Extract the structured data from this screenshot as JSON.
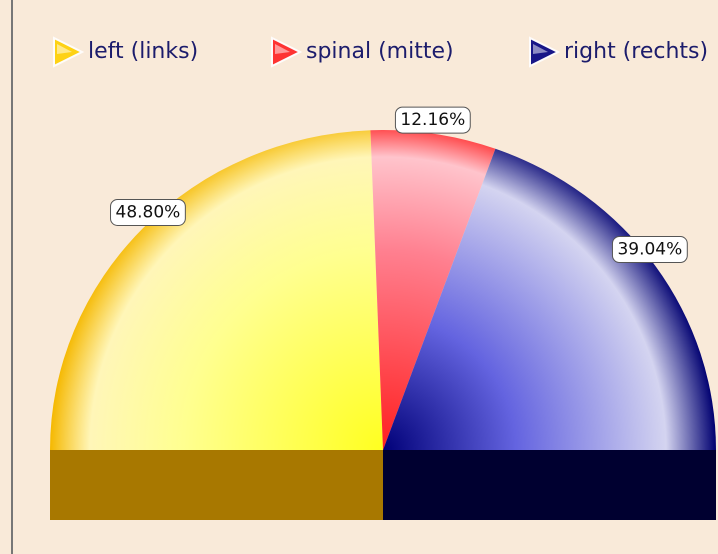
{
  "chart_data": {
    "type": "pie",
    "shape": "semicircle",
    "categories": [
      "left (links)",
      "spinal (mitte)",
      "right (rechts)"
    ],
    "values": [
      48.8,
      12.16,
      39.04
    ],
    "value_labels": [
      "48.80%",
      "12.16%",
      "39.04%"
    ],
    "colors": [
      "#ffd000",
      "#ff2020",
      "#000080"
    ],
    "legend": "top"
  }
}
